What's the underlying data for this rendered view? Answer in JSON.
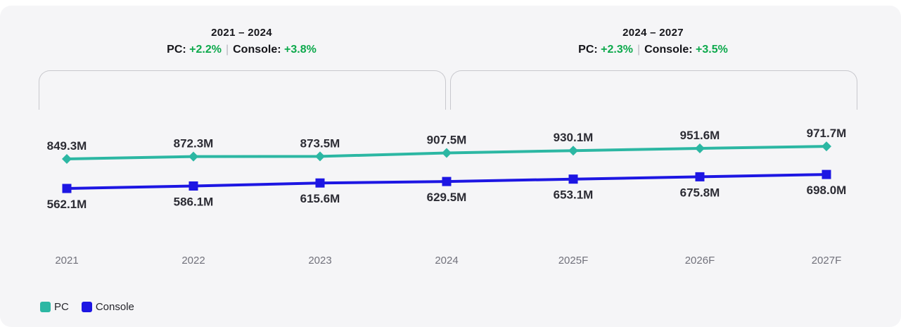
{
  "annotations": [
    {
      "period": "2021 – 2024",
      "pc_label": "PC:",
      "pc_value": "+2.2%",
      "separator": "|",
      "console_label": "Console:",
      "console_value": "+3.8%"
    },
    {
      "period": "2024 – 2027",
      "pc_label": "PC:",
      "pc_value": "+2.3%",
      "separator": "|",
      "console_label": "Console:",
      "console_value": "+3.5%"
    }
  ],
  "legend": [
    {
      "label": "PC",
      "color": "#2cb7a3"
    },
    {
      "label": "Console",
      "color": "#1d16e3"
    }
  ],
  "colors": {
    "pc_line": "#2cb7a3",
    "console_line": "#1d16e3",
    "growth_positive": "#0da94c",
    "card_background": "#f5f5f7",
    "axis_text": "#71717b",
    "value_text": "#2c2c34",
    "bracket_border": "#c8c8cd"
  },
  "chart_data": {
    "type": "line",
    "categories": [
      "2021",
      "2022",
      "2023",
      "2024",
      "2025F",
      "2026F",
      "2027F"
    ],
    "series": [
      {
        "name": "PC",
        "values": [
          849.3,
          872.3,
          873.5,
          907.5,
          930.1,
          951.6,
          971.7
        ],
        "labels": [
          "849.3M",
          "872.3M",
          "873.5M",
          "907.5M",
          "930.1M",
          "951.6M",
          "971.7M"
        ],
        "color": "#2cb7a3",
        "marker": "diamond",
        "label_position": "above"
      },
      {
        "name": "Console",
        "values": [
          562.1,
          586.1,
          615.6,
          629.5,
          653.1,
          675.8,
          698.0
        ],
        "labels": [
          "562.1M",
          "586.1M",
          "615.6M",
          "629.5M",
          "653.1M",
          "675.8M",
          "698.0M"
        ],
        "color": "#1d16e3",
        "marker": "square",
        "label_position": "below"
      }
    ],
    "unit": "M",
    "title": "",
    "xlabel": "",
    "ylabel": "",
    "grid": false,
    "legend_position": "bottom-left",
    "annotations_note": "CAGR annotations for 2021-2024 and 2024-2027 shown above chart"
  }
}
